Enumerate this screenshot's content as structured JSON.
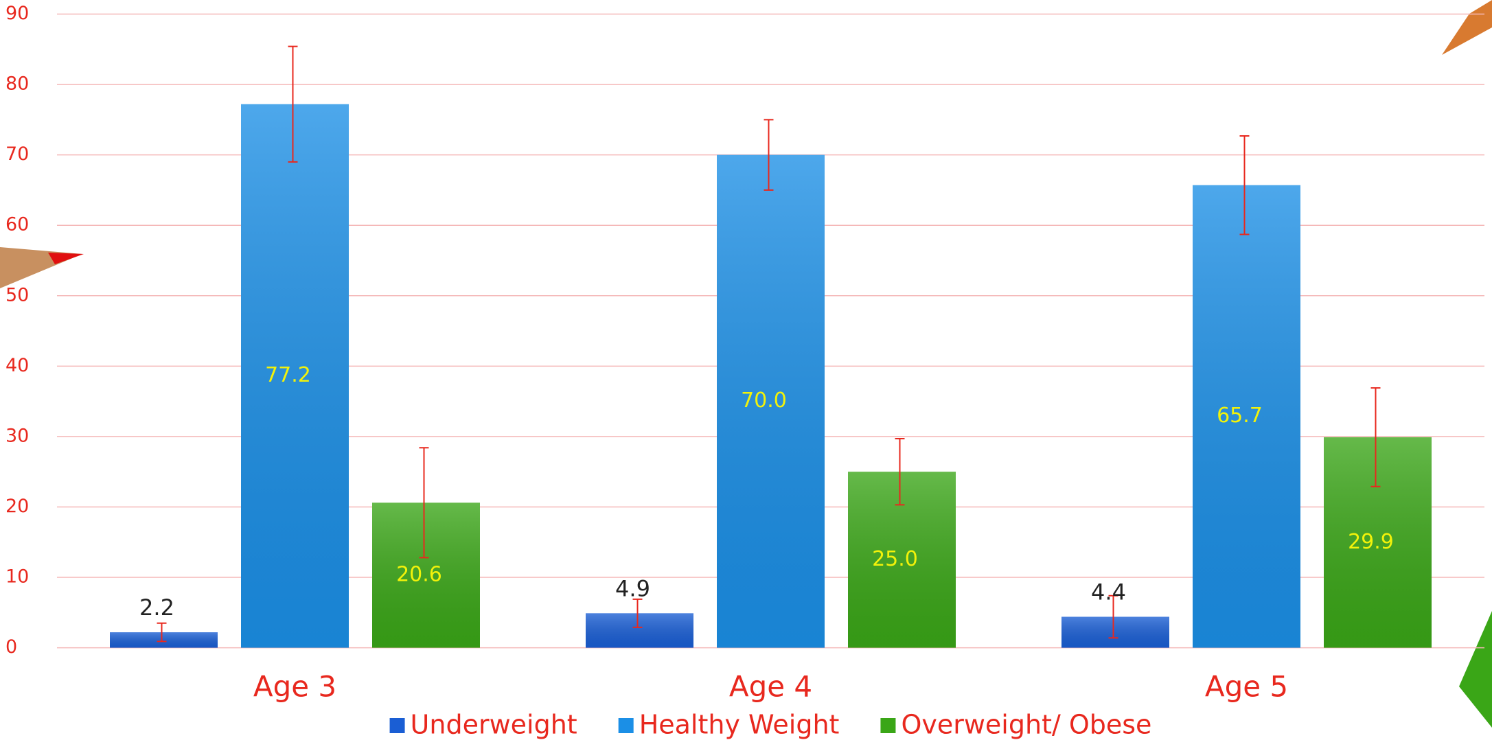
{
  "chart_data": {
    "type": "bar",
    "categories": [
      "Age 3",
      "Age 4",
      "Age 5"
    ],
    "series": [
      {
        "name": "Underweight",
        "color": "#1a5ed4",
        "values": [
          2.2,
          4.9,
          4.4
        ],
        "errors": [
          1.3,
          2.0,
          3.0
        ],
        "value_labels": [
          "2.2",
          "4.9",
          "4.4"
        ],
        "label_color": "#222222"
      },
      {
        "name": "Healthy Weight",
        "color": "#1b8fe6",
        "values": [
          77.2,
          70,
          65.7
        ],
        "errors": [
          8.2,
          5.0,
          7.0
        ],
        "value_labels": [
          "77.2",
          "70.0",
          "65.7"
        ],
        "label_color": "#f2f20a"
      },
      {
        "name": "Overweight/ Obese",
        "color": "#3aa617",
        "values": [
          20.6,
          25,
          29.9
        ],
        "errors": [
          7.8,
          4.7,
          7.0
        ],
        "value_labels": [
          "20.6",
          "25.0",
          "29.9"
        ],
        "label_color": "#f2f20a"
      }
    ],
    "ylim": [
      0,
      90
    ],
    "yticks": [
      0,
      10,
      20,
      30,
      40,
      50,
      60,
      70,
      80,
      90
    ],
    "grid": true,
    "axis_color": "#e8281e",
    "grid_color": "#f5b8b8",
    "error_color": "#e8281e",
    "legend": "bottom"
  }
}
